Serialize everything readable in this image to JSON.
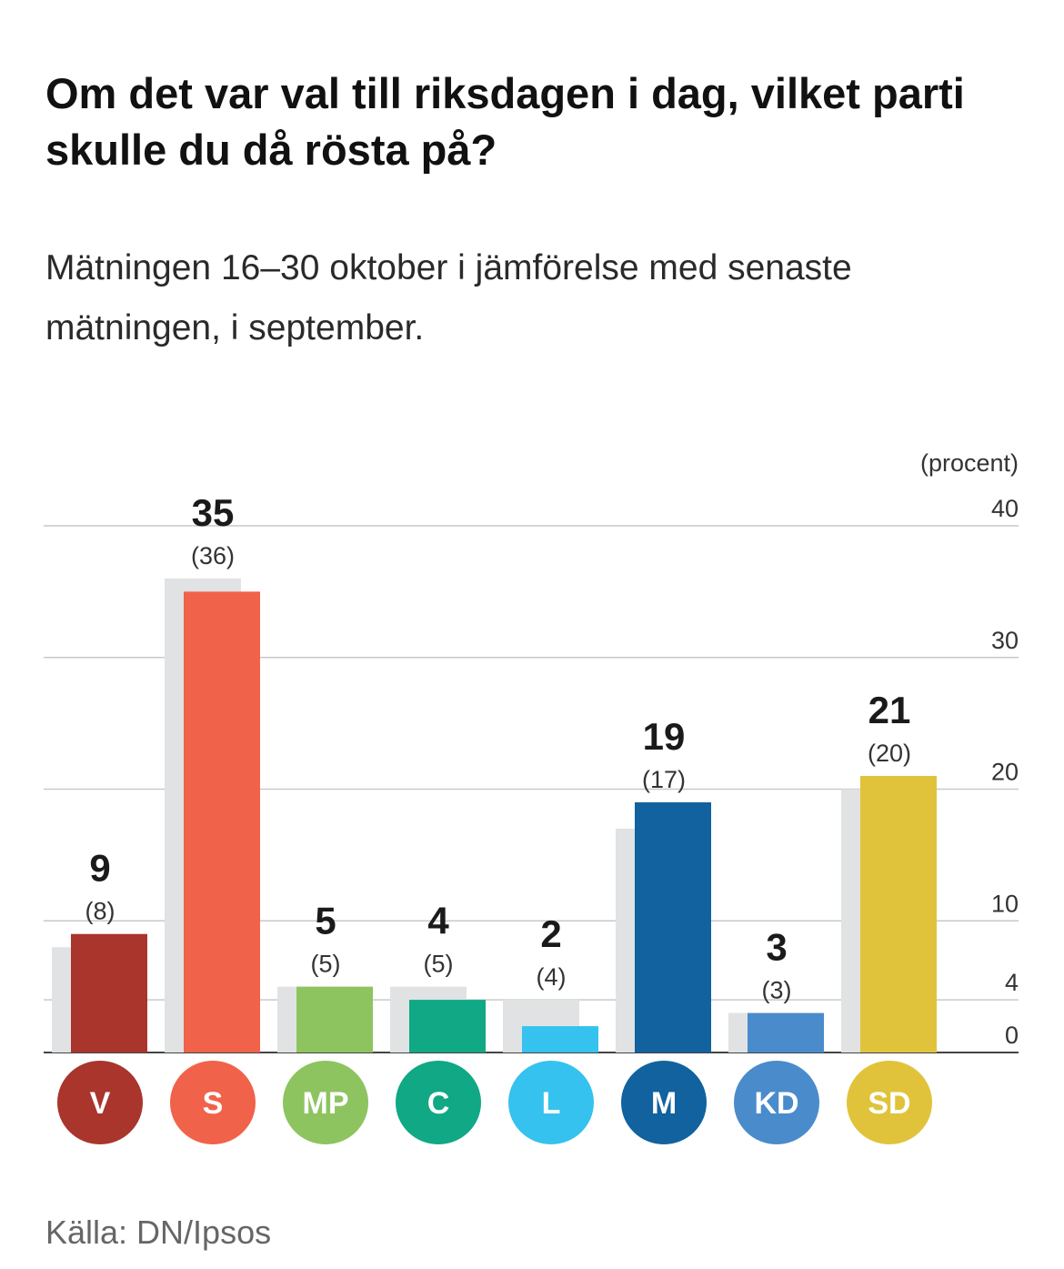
{
  "title": "Om det var val till riksdagen i dag, vilket parti skulle du då rösta på?",
  "subtitle": "Mätningen 16–30 oktober i jämförelse med senaste mätningen, i september.",
  "source": "Källa: DN/Ipsos",
  "chart_data": {
    "type": "bar",
    "title": "Om det var val till riksdagen i dag, vilket parti skulle du då rösta på?",
    "subtitle": "Mätningen 16–30 oktober i jämförelse med senaste mätningen, i september.",
    "ylabel": "(procent)",
    "xlabel": "",
    "ylim": [
      0,
      40
    ],
    "yticks": [
      0,
      4,
      10,
      20,
      30,
      40
    ],
    "grid": true,
    "categories": [
      "V",
      "S",
      "MP",
      "C",
      "L",
      "M",
      "KD",
      "SD"
    ],
    "colors": [
      "#a9352c",
      "#f0624a",
      "#8dc460",
      "#10a885",
      "#35c2ee",
      "#11629e",
      "#4a8bcc",
      "#e0c33a"
    ],
    "previous_color": "#e1e2e3",
    "series": [
      {
        "name": "Oktober",
        "values": [
          9,
          35,
          5,
          4,
          2,
          19,
          3,
          21
        ]
      },
      {
        "name": "September",
        "values": [
          8,
          36,
          5,
          5,
          4,
          17,
          3,
          20
        ]
      }
    ],
    "value_labels": [
      "9",
      "35",
      "5",
      "4",
      "2",
      "19",
      "3",
      "21"
    ],
    "previous_labels": [
      "(8)",
      "(36)",
      "(5)",
      "(5)",
      "(4)",
      "(17)",
      "(3)",
      "(20)"
    ]
  }
}
